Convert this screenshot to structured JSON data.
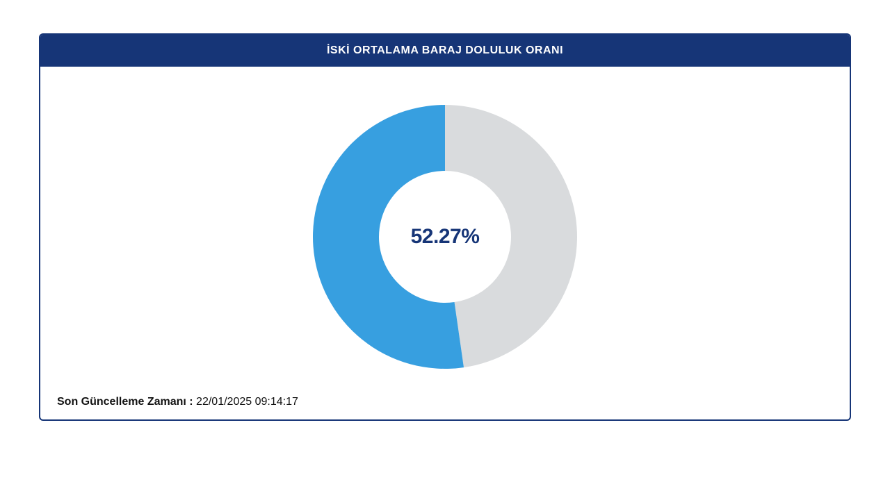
{
  "card": {
    "title": "İSKİ ORTALAMA BARAJ DOLULUK ORANI",
    "footer_label": "Son Güncelleme Zamanı :",
    "footer_value": " 22/01/2025 09:14:17",
    "border_color": "#163577",
    "header_bg": "#163577",
    "header_text_color": "#ffffff",
    "header_fontsize": 16
  },
  "donut": {
    "type": "donut",
    "value_percent": 52.27,
    "center_label": "52.27%",
    "center_label_color": "#163577",
    "center_label_fontsize": 30,
    "fill_color": "#379fe0",
    "empty_color": "#d9dbdd",
    "background_color": "#ffffff",
    "outer_radius": 190,
    "inner_radius": 95,
    "start_angle_deg": -90,
    "svg_size": 400
  }
}
